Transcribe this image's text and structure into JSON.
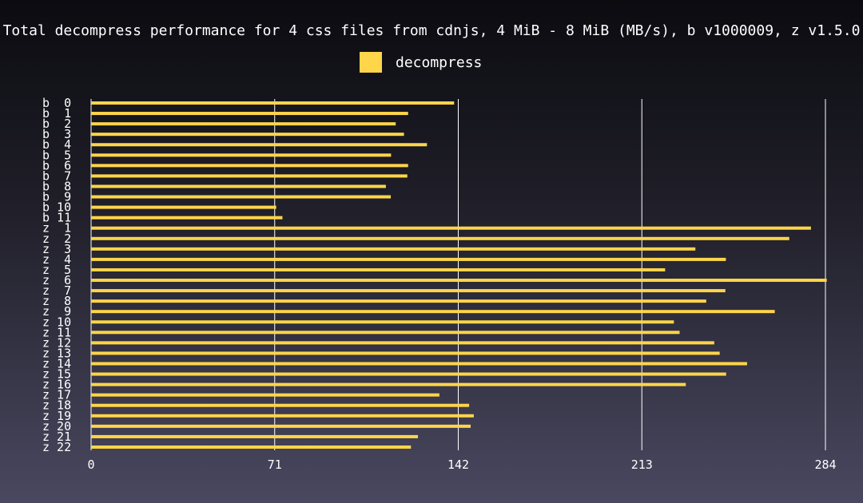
{
  "colors": {
    "bar": "#FFD54A",
    "grid": "#FFFFFF",
    "text": "#FFFFFF"
  },
  "chart_data": {
    "type": "bar",
    "orientation": "horizontal",
    "title": "Total decompress performance for 4 css files from cdnjs, 4 MiB - 8 MiB (MB/s), b v1000009, z v1.5.0",
    "xlabel": "",
    "ylabel": "",
    "xlim": [
      0,
      284
    ],
    "x_ticks": [
      0,
      71,
      142,
      213,
      284
    ],
    "grid": true,
    "legend_position": "top-center",
    "categories": [
      "b  0",
      "b  1",
      "b  2",
      "b  3",
      "b  4",
      "b  5",
      "b  6",
      "b  7",
      "b  8",
      "b  9",
      "b 10",
      "b 11",
      "z  1",
      "z  2",
      "z  3",
      "z  4",
      "z  5",
      "z  6",
      "z  7",
      "z  8",
      "z  9",
      "z 10",
      "z 11",
      "z 12",
      "z 13",
      "z 14",
      "z 15",
      "z 16",
      "z 17",
      "z 18",
      "z 19",
      "z 20",
      "z 21",
      "z 22"
    ],
    "series": [
      {
        "name": "decompress",
        "values": [
          140.4,
          122.6,
          117.8,
          121.0,
          129.9,
          116.0,
          122.6,
          122.3,
          114.0,
          115.9,
          71.6,
          74.0,
          278.4,
          270.0,
          233.7,
          245.5,
          222.0,
          284.5,
          245.3,
          237.9,
          264.4,
          225.4,
          227.6,
          241.0,
          243.1,
          253.7,
          245.6,
          230.0,
          134.7,
          146.2,
          148.0,
          146.8,
          126.4,
          123.7
        ]
      }
    ]
  }
}
